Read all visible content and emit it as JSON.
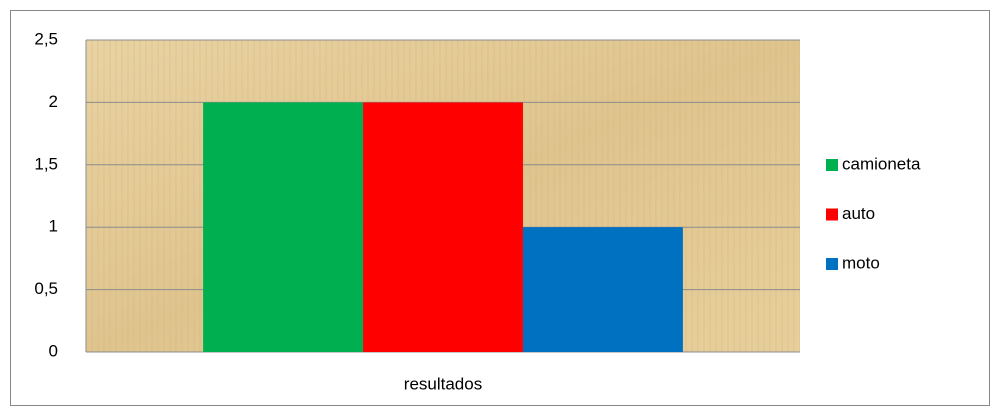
{
  "chart_data": {
    "type": "bar",
    "categories": [
      "resultados"
    ],
    "series": [
      {
        "name": "camioneta",
        "color": "#00b050",
        "values": [
          2
        ]
      },
      {
        "name": "auto",
        "color": "#ff0000",
        "values": [
          2
        ]
      },
      {
        "name": "moto",
        "color": "#0070c0",
        "values": [
          1
        ]
      }
    ],
    "ylim": [
      0,
      2.5
    ],
    "yticks": [
      0,
      {
        "value": 0.5,
        "label": "0,5"
      },
      1,
      {
        "value": 1.5,
        "label": "1,5"
      },
      2,
      {
        "value": 2.5,
        "label": "2,5"
      }
    ],
    "grid": true,
    "legend": "right"
  }
}
